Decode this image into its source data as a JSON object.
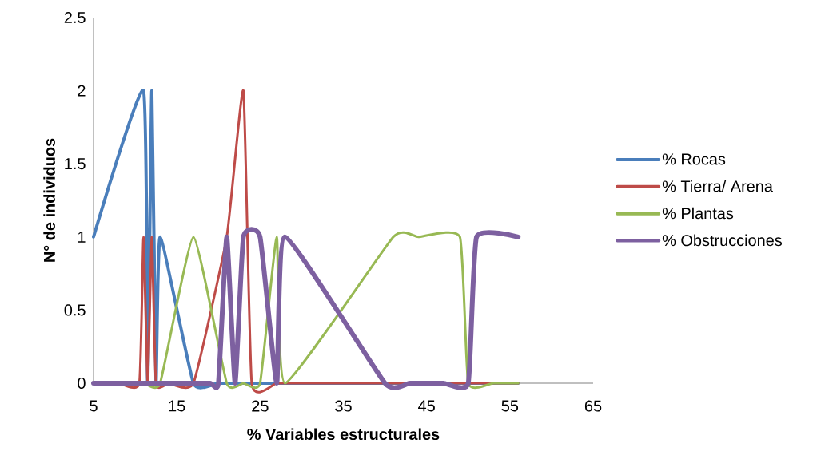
{
  "chart_data": {
    "type": "line",
    "xlabel": "% Variables estructurales",
    "ylabel": "N° de individuos",
    "xlim": [
      5,
      65
    ],
    "xticks": [
      5,
      15,
      25,
      35,
      45,
      55,
      65
    ],
    "ylim": [
      0,
      2.5
    ],
    "yticks": [
      0,
      0.5,
      1,
      1.5,
      2,
      2.5
    ],
    "grid": false,
    "legend": "right",
    "marker": "none",
    "line_style": "solid",
    "series": [
      {
        "name": "% Rocas",
        "color": "#4a7ebb",
        "x": [
          5,
          11,
          11.5,
          12,
          12.5,
          13,
          17,
          20,
          25,
          30,
          40,
          50,
          56
        ],
        "values": [
          1,
          2,
          0,
          2,
          0,
          1,
          0,
          0,
          0,
          0,
          0,
          0,
          0
        ]
      },
      {
        "name": "% Tierra/ Arena",
        "color": "#be4b48",
        "x": [
          5,
          8,
          10.5,
          11,
          11.5,
          12,
          12.5,
          14,
          17,
          21,
          23,
          24,
          27,
          30,
          40,
          50,
          56
        ],
        "values": [
          0,
          0,
          0,
          1,
          0,
          1,
          0,
          0,
          0,
          1,
          2,
          0,
          0,
          0,
          0,
          0,
          0
        ]
      },
      {
        "name": "% Plantas",
        "color": "#98b954",
        "x": [
          5,
          8,
          11,
          13,
          17,
          21,
          23,
          25,
          27,
          28,
          41,
          44,
          49,
          50,
          53,
          56
        ],
        "values": [
          0,
          0,
          0,
          0,
          1,
          0,
          0,
          0,
          1,
          0,
          1,
          1,
          1,
          0,
          0,
          0
        ]
      },
      {
        "name": "% Obstrucciones",
        "color": "#7d60a0",
        "x": [
          5,
          10,
          15,
          19,
          20,
          21,
          22,
          23,
          25,
          27,
          28,
          40,
          43,
          47,
          50,
          51,
          56
        ],
        "values": [
          0,
          0,
          0,
          0,
          0,
          1,
          0,
          1,
          1,
          0,
          1,
          0,
          0,
          0,
          0,
          1,
          1
        ]
      }
    ]
  }
}
